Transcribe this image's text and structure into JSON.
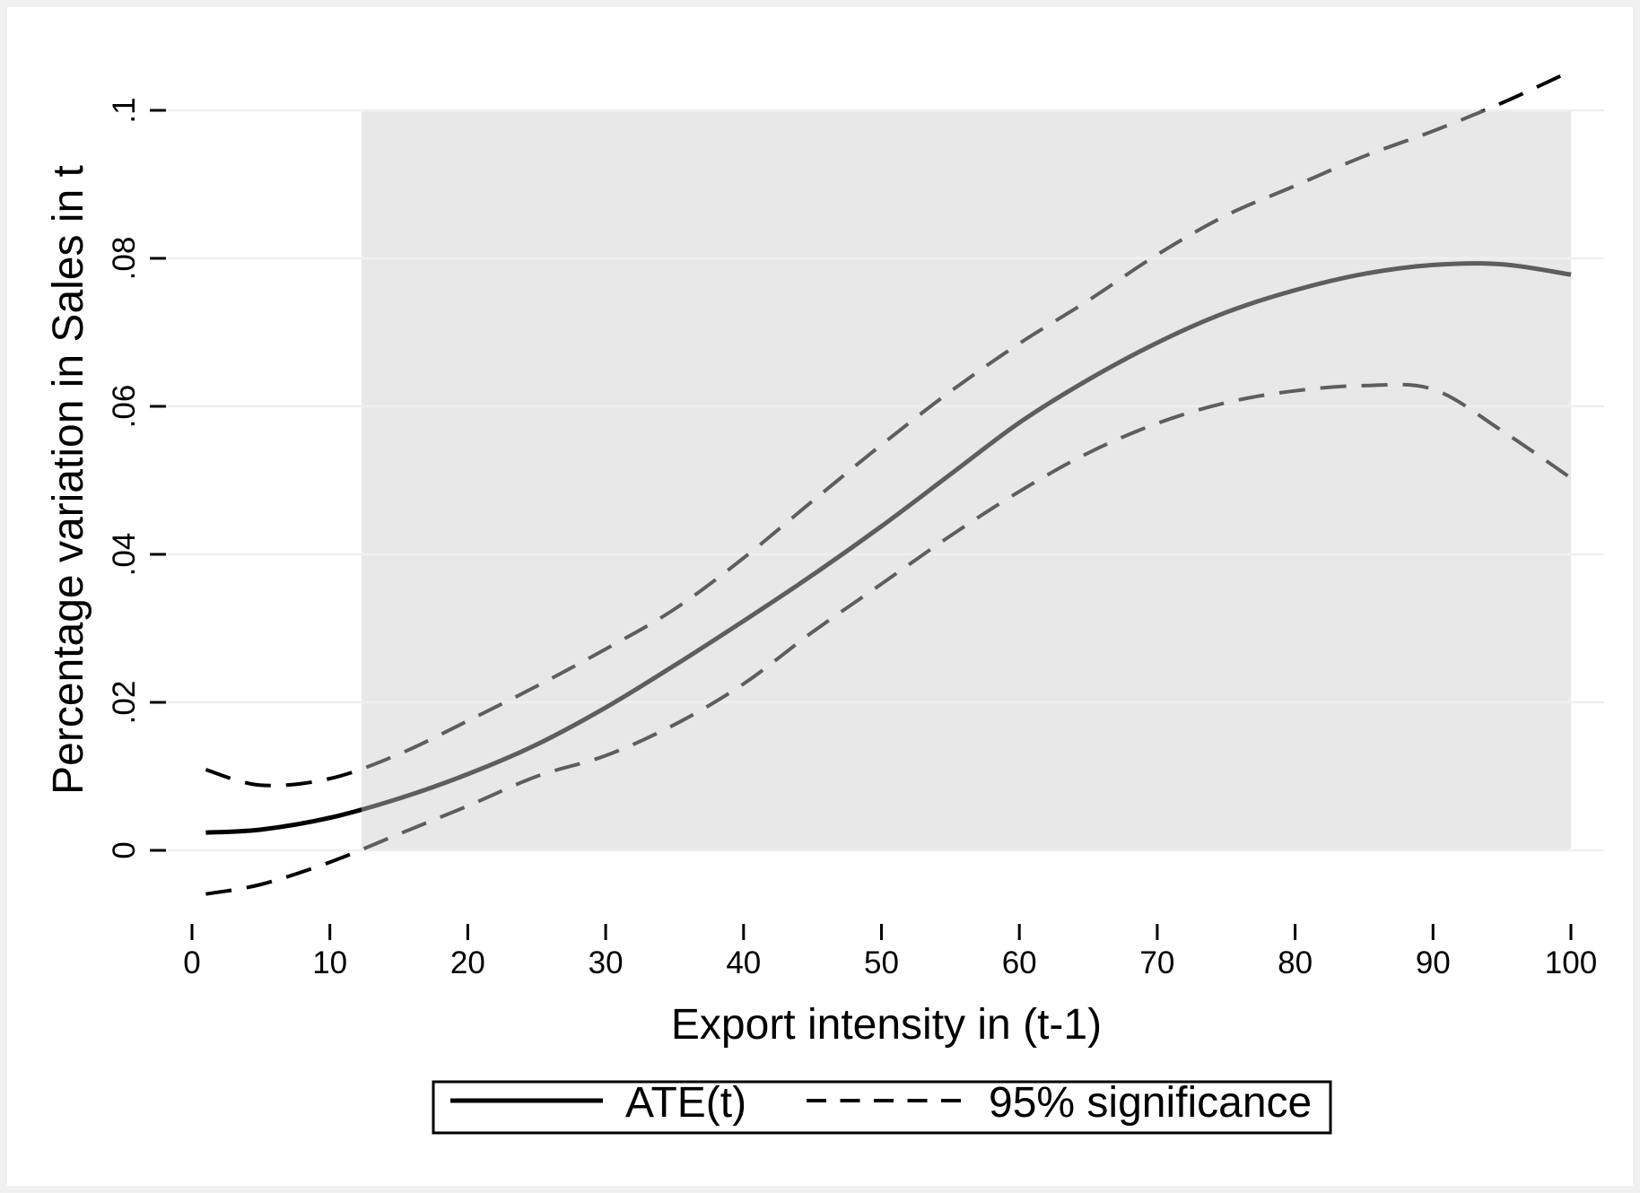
{
  "axes": {
    "x_title": "Export intensity in (t-1)",
    "y_title": "Percentage variation in Sales in t"
  },
  "legend": {
    "ate_label": "ATE(t)",
    "ci_label": "95% significance"
  },
  "chart_data": {
    "type": "line",
    "title": "",
    "xlabel": "Export intensity in (t-1)",
    "ylabel": "Percentage variation in Sales in t",
    "xlim": [
      -1.8,
      102.5
    ],
    "ylim": [
      -0.0097,
      0.1058
    ],
    "grid": "horizontal-only",
    "legend_position": "bottom-center",
    "x_ticks": [
      0,
      10,
      20,
      30,
      40,
      50,
      60,
      70,
      80,
      90,
      100
    ],
    "x_tick_labels": [
      "0",
      "10",
      "20",
      "30",
      "40",
      "50",
      "60",
      "70",
      "80",
      "90",
      "100"
    ],
    "y_ticks": [
      0,
      0.02,
      0.04,
      0.06,
      0.08,
      0.1
    ],
    "y_tick_labels": [
      "0",
      ".02",
      ".04",
      ".06",
      ".08",
      ".1"
    ],
    "shaded_region": {
      "x_start": 12.3,
      "x_end": 100,
      "y_bottom": 0,
      "y_top": 0.1,
      "fill": "#e8e8e8"
    },
    "x": [
      1,
      5,
      10,
      15,
      20,
      25,
      30,
      35,
      40,
      45,
      50,
      55,
      60,
      65,
      70,
      75,
      80,
      85,
      90,
      95,
      100
    ],
    "series": [
      {
        "name": "ATE(t)",
        "style": "solid",
        "values": [
          0.0024,
          0.0028,
          0.0044,
          0.007,
          0.0103,
          0.0143,
          0.0193,
          0.025,
          0.031,
          0.0372,
          0.0438,
          0.0508,
          0.0578,
          0.0636,
          0.0686,
          0.0727,
          0.0757,
          0.0779,
          0.0791,
          0.0792,
          0.0778
        ]
      },
      {
        "name": "95% significance (upper band)",
        "style": "dashed",
        "values": [
          0.0109,
          0.0088,
          0.0097,
          0.013,
          0.0175,
          0.0222,
          0.0272,
          0.0326,
          0.0395,
          0.0472,
          0.0548,
          0.062,
          0.0685,
          0.0743,
          0.0805,
          0.0858,
          0.0898,
          0.0938,
          0.0972,
          0.101,
          0.1053
        ]
      },
      {
        "name": "95% significance (lower band)",
        "style": "dashed",
        "values": [
          -0.0059,
          -0.0046,
          -0.0016,
          0.0022,
          0.006,
          0.01,
          0.0128,
          0.017,
          0.0225,
          0.0295,
          0.036,
          0.0425,
          0.0485,
          0.0537,
          0.0577,
          0.0605,
          0.0621,
          0.0628,
          0.0623,
          0.0567,
          0.0503
        ]
      }
    ],
    "colors": {
      "line_outside_region": "#000000",
      "line_inside_region": "#5e5e5e",
      "gridline": "#efefef",
      "shading": "#e8e8e8",
      "tick": "#000000",
      "text": "#000000",
      "legend_border": "#000000",
      "figure_edge": "#f0f0f0"
    }
  }
}
